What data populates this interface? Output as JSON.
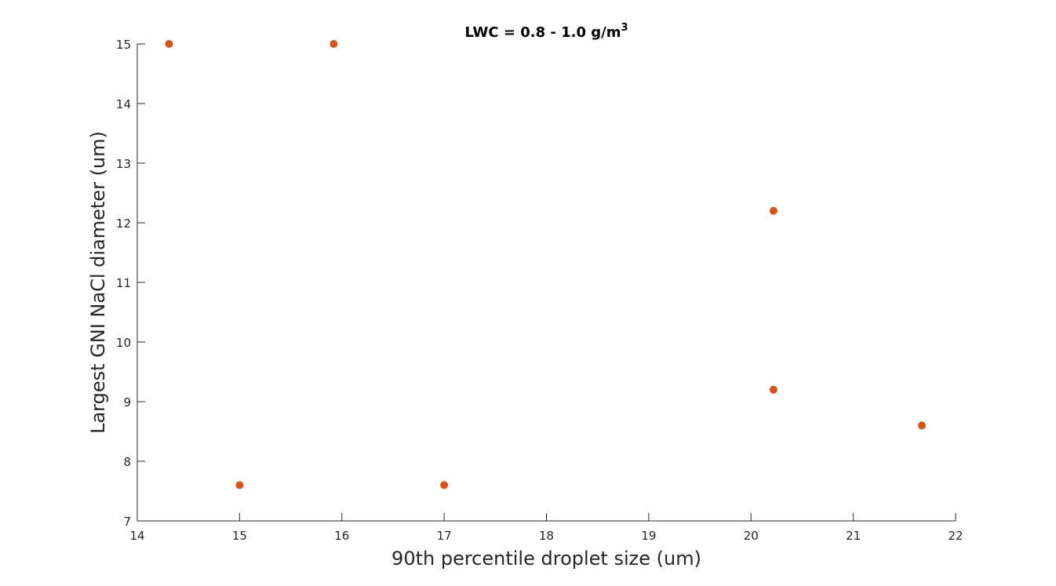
{
  "chart_data": {
    "type": "scatter",
    "title": "LWC = 0.8 - 1.0 g/m",
    "title_superscript": "3",
    "xlabel": "90th percentile droplet size (um)",
    "ylabel": "Largest GNI NaCl diameter (um)",
    "xlim": [
      14,
      22
    ],
    "ylim": [
      7,
      15
    ],
    "xticks": [
      14,
      15,
      16,
      17,
      18,
      19,
      20,
      21,
      22
    ],
    "yticks": [
      7,
      8,
      9,
      10,
      11,
      12,
      13,
      14,
      15
    ],
    "grid": false,
    "marker_color": "#D95319",
    "series": [
      {
        "points": [
          {
            "x": 14.31,
            "y": 15.0
          },
          {
            "x": 15.0,
            "y": 7.6
          },
          {
            "x": 15.92,
            "y": 15.0
          },
          {
            "x": 17.0,
            "y": 7.6
          },
          {
            "x": 20.22,
            "y": 12.2
          },
          {
            "x": 20.22,
            "y": 9.2
          },
          {
            "x": 21.67,
            "y": 8.6
          }
        ]
      }
    ]
  }
}
